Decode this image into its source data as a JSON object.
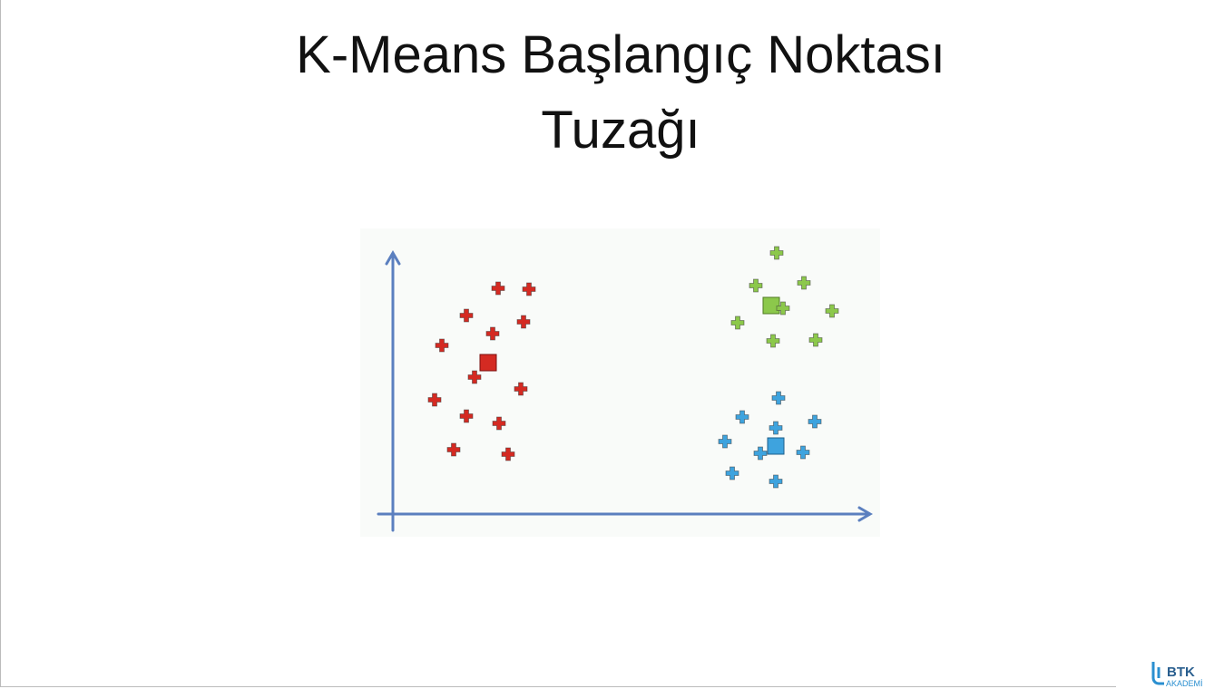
{
  "header": {
    "title_lines": [
      "K-Means Başlangıç Noktası",
      "Tuzağı"
    ]
  },
  "logo": {
    "name": "BTK",
    "subtitle": "AKADEMİ"
  }
}
